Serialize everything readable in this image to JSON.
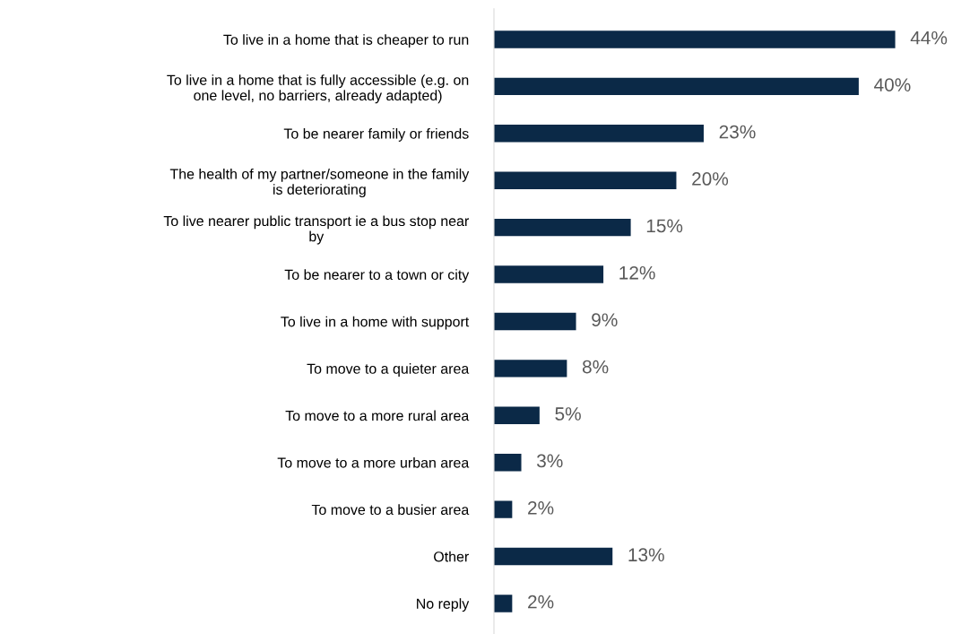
{
  "chart_data": {
    "type": "bar",
    "orientation": "horizontal",
    "categories": [
      "To live in a home that is cheaper to run",
      "To live in a home that is fully accessible (e.g. on\none level, no barriers, already adapted)",
      "To be nearer family or friends",
      "The health of my partner/someone in the family\nis deteriorating",
      "To live nearer public transport ie a bus stop near\nby",
      "To be nearer to a town or city",
      "To live in a home with support",
      "To move to a quieter area",
      "To move to a more rural area",
      "To move to a more urban area",
      "To move to a busier area",
      "Other",
      "No reply"
    ],
    "values": [
      44,
      40,
      23,
      20,
      15,
      12,
      9,
      8,
      5,
      3,
      2,
      13,
      2
    ],
    "value_labels": [
      "44%",
      "40%",
      "23%",
      "20%",
      "15%",
      "12%",
      "9%",
      "8%",
      "5%",
      "3%",
      "2%",
      "13%",
      "2%"
    ],
    "color": "#0b2947",
    "grid": false,
    "legend": false
  }
}
